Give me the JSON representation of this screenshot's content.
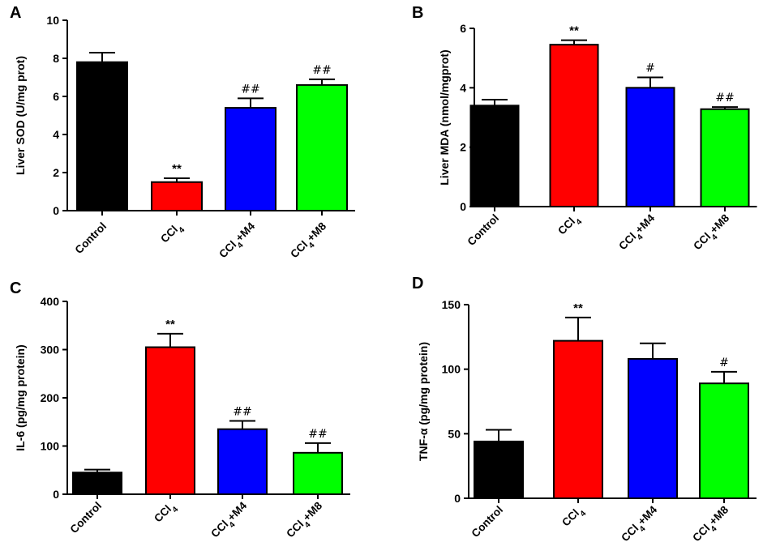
{
  "chart_data": [
    {
      "panel": "A",
      "type": "bar",
      "ylabel": "Liver SOD (U/mg prot)",
      "ylim": [
        0,
        10
      ],
      "yticks": [
        0,
        2,
        4,
        6,
        8,
        10
      ],
      "categories": [
        "Control",
        "CCl4",
        "CCl4+M4",
        "CCl4+M8"
      ],
      "values": [
        7.8,
        1.5,
        5.4,
        6.6
      ],
      "errors": [
        0.5,
        0.2,
        0.5,
        0.3
      ],
      "annotations": [
        "",
        "**",
        "##",
        "##"
      ],
      "colors": [
        "#000000",
        "#ff0000",
        "#0000ff",
        "#00ff00"
      ]
    },
    {
      "panel": "B",
      "type": "bar",
      "ylabel": "Liver MDA (nmol/mgprot)",
      "ylim": [
        0,
        6
      ],
      "yticks": [
        0,
        2,
        4,
        6
      ],
      "categories": [
        "Control",
        "CCl4",
        "CCl4+M4",
        "CCl4+M8"
      ],
      "values": [
        3.4,
        5.45,
        4.0,
        3.28
      ],
      "errors": [
        0.2,
        0.15,
        0.35,
        0.07
      ],
      "annotations": [
        "",
        "**",
        "#",
        "##"
      ],
      "colors": [
        "#000000",
        "#ff0000",
        "#0000ff",
        "#00ff00"
      ]
    },
    {
      "panel": "C",
      "type": "bar",
      "ylabel": "IL-6 (pg/mg protein)",
      "ylim": [
        0,
        400
      ],
      "yticks": [
        0,
        100,
        200,
        300,
        400
      ],
      "categories": [
        "Control",
        "CCl4",
        "CCl4+M4",
        "CCl4+M8"
      ],
      "values": [
        45,
        305,
        135,
        86
      ],
      "errors": [
        6,
        28,
        17,
        20
      ],
      "annotations": [
        "",
        "**",
        "##",
        "##"
      ],
      "colors": [
        "#000000",
        "#ff0000",
        "#0000ff",
        "#00ff00"
      ]
    },
    {
      "panel": "D",
      "type": "bar",
      "ylabel": "TNF-α  (pg/mg protein)",
      "ylim": [
        0,
        150
      ],
      "yticks": [
        0,
        50,
        100,
        150
      ],
      "categories": [
        "Control",
        "CCl4",
        "CCl4+M4",
        "CCl4+M8"
      ],
      "values": [
        44,
        122,
        108,
        89
      ],
      "errors": [
        9,
        18,
        12,
        9
      ],
      "annotations": [
        "",
        "**",
        "",
        "#"
      ],
      "colors": [
        "#000000",
        "#ff0000",
        "#0000ff",
        "#00ff00"
      ]
    }
  ]
}
